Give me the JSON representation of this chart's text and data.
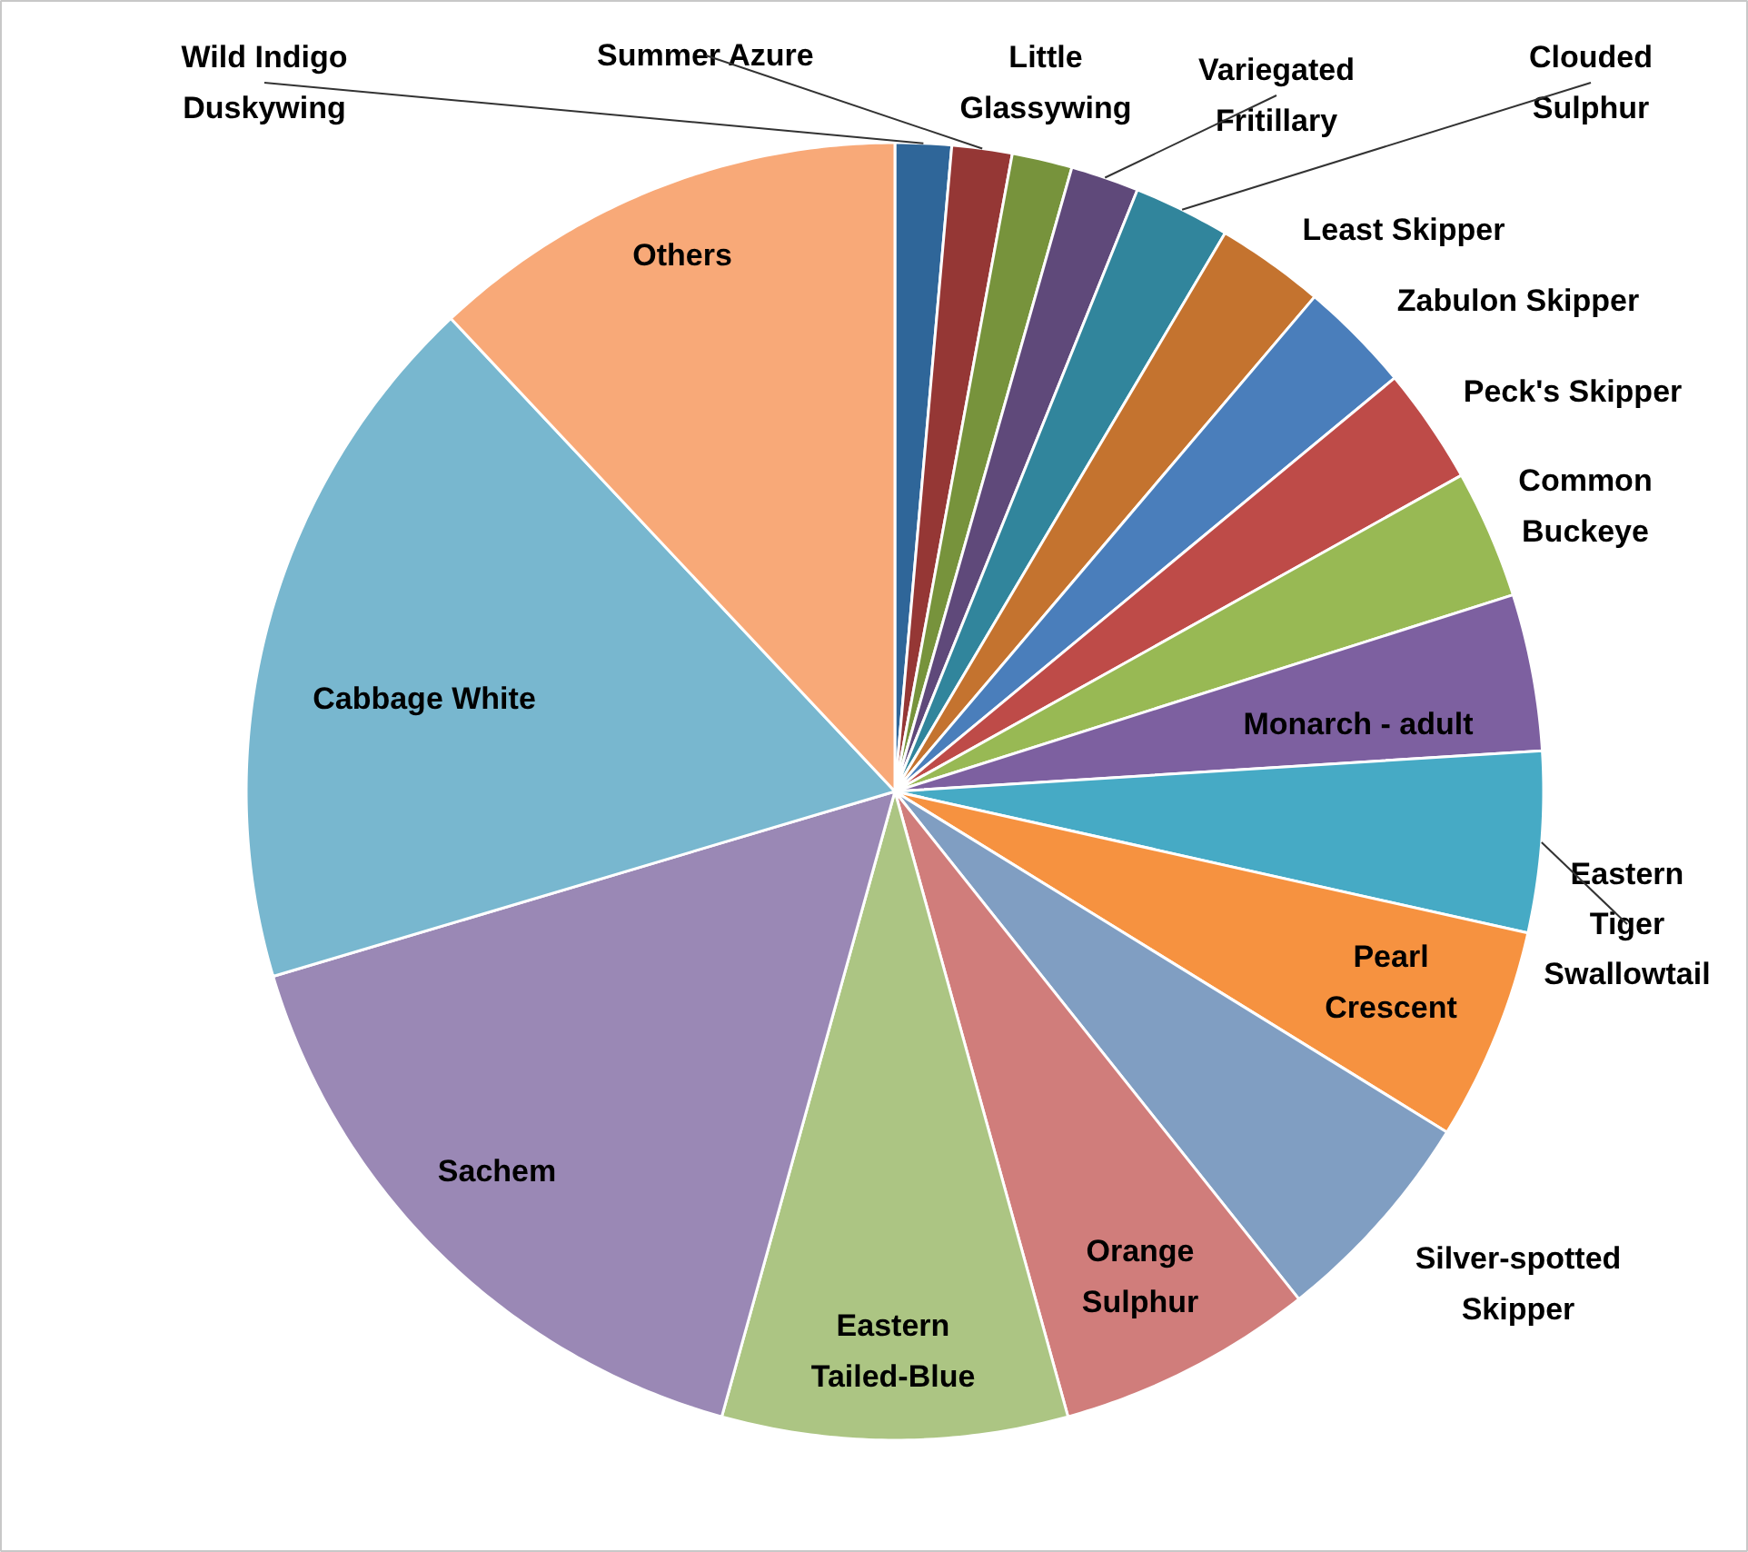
{
  "chart_data": {
    "type": "pie",
    "categories": [
      "Wild Indigo Duskywing",
      "Summer Azure",
      "Little Glassywing",
      "Variegated Fritillary",
      "Clouded Sulphur",
      "Least Skipper",
      "Zabulon Skipper",
      "Peck's Skipper",
      "Common Buckeye",
      "Monarch - adult",
      "Eastern Tiger Swallowtail",
      "Pearl Crescent",
      "Silver-spotted Skipper",
      "Orange Sulphur",
      "Eastern Tailed-Blue",
      "Sachem",
      "Cabbage White",
      "Others"
    ],
    "values": [
      1.4,
      1.5,
      1.5,
      1.7,
      2.4,
      2.7,
      2.8,
      2.9,
      3.2,
      3.9,
      4.5,
      5.3,
      5.5,
      6.4,
      8.6,
      16.1,
      17.6,
      12.0
    ],
    "colors": [
      "#2f6699",
      "#953735",
      "#77933c",
      "#5f497a",
      "#31859c",
      "#c4732f",
      "#4a7ebb",
      "#be4b48",
      "#98b954",
      "#7d60a0",
      "#46aac5",
      "#f69240",
      "#809ec2",
      "#d07d7b",
      "#acc583",
      "#9a88b5",
      "#78b7cf",
      "#f8a978"
    ]
  }
}
